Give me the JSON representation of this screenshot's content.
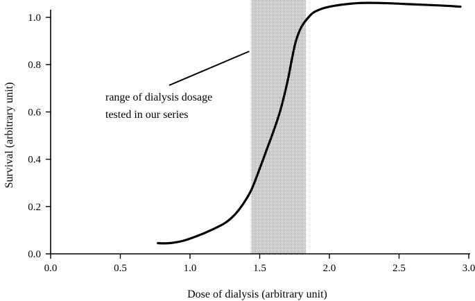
{
  "chart_data": {
    "type": "line",
    "title": "",
    "xlabel": "Dose of dialysis (arbitrary unit)",
    "ylabel": "Survival (arbitrary unit)",
    "xlim": [
      0.0,
      3.0
    ],
    "ylim": [
      0.0,
      1.0
    ],
    "xticks": [
      "0.0",
      "0.5",
      "1.0",
      "1.5",
      "2.0",
      "2.5",
      "3.0"
    ],
    "yticks": [
      "0.0",
      "0.2",
      "0.4",
      "0.6",
      "0.8",
      "1.0"
    ],
    "grid": false,
    "shaded_region": {
      "x_start": 1.44,
      "x_end": 1.83,
      "color": "#c8c8c8"
    },
    "annotation": {
      "lines": [
        "range of dialysis dosage",
        "tested in our series"
      ]
    },
    "series": [
      {
        "x": [
          0.77,
          0.85,
          0.95,
          1.05,
          1.15,
          1.25,
          1.32,
          1.38,
          1.44,
          1.5,
          1.55,
          1.6,
          1.65,
          1.7,
          1.73,
          1.76,
          1.8,
          1.85,
          1.9,
          2.0,
          2.2,
          2.4,
          2.6,
          2.8,
          2.94
        ],
        "y": [
          0.045,
          0.045,
          0.055,
          0.075,
          0.1,
          0.13,
          0.165,
          0.21,
          0.27,
          0.36,
          0.44,
          0.52,
          0.61,
          0.73,
          0.82,
          0.9,
          0.96,
          1.0,
          1.025,
          1.045,
          1.06,
          1.06,
          1.055,
          1.05,
          1.045
        ]
      }
    ]
  }
}
